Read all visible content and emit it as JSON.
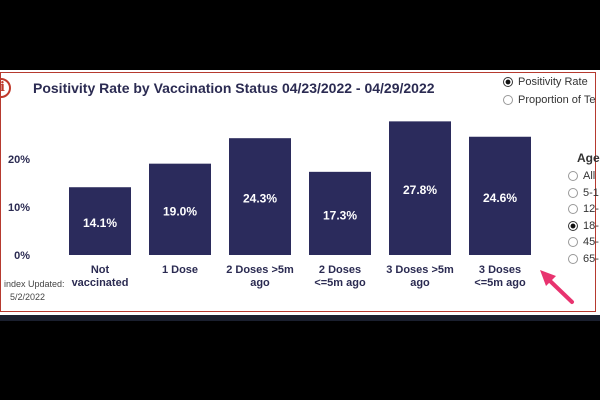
{
  "header": {
    "title": "Positivity Rate by Vaccination Status 04/23/2022 - 04/29/2022",
    "info_icon": "i"
  },
  "metric_toggle": [
    {
      "label": "Positivity Rate",
      "selected": true
    },
    {
      "label": "Proportion of Te",
      "selected": false
    }
  ],
  "age_filter": {
    "title": "Age",
    "options": [
      {
        "label": "All",
        "selected": false
      },
      {
        "label": "5-1",
        "selected": false
      },
      {
        "label": "12-",
        "selected": false
      },
      {
        "label": "18-",
        "selected": true
      },
      {
        "label": "45-",
        "selected": false
      },
      {
        "label": "65-",
        "selected": false
      }
    ]
  },
  "footnote": {
    "line1": "index Updated:",
    "line2": "5/2/2022"
  },
  "colors": {
    "bar": "#2b2b5c",
    "accent": "#e8336f",
    "frame": "#b63a2f"
  },
  "chart_data": {
    "type": "bar",
    "title": "Positivity Rate by Vaccination Status 04/23/2022 - 04/29/2022",
    "categories": [
      [
        "Not",
        "vaccinated"
      ],
      [
        "1 Dose"
      ],
      [
        "2 Doses >5m",
        "ago"
      ],
      [
        "2 Doses",
        "<=5m ago"
      ],
      [
        "3 Doses >5m",
        "ago"
      ],
      [
        "3 Doses",
        "<=5m ago"
      ]
    ],
    "values": [
      14.1,
      19.0,
      24.3,
      17.3,
      27.8,
      24.6
    ],
    "data_labels": [
      "14.1%",
      "19.0%",
      "24.3%",
      "17.3%",
      "27.8%",
      "24.6%"
    ],
    "y_ticks": [
      0,
      10,
      20
    ],
    "y_tick_labels": [
      "0%",
      "10%",
      "20%"
    ],
    "ylim": [
      0,
      28.5
    ],
    "grid": false
  }
}
